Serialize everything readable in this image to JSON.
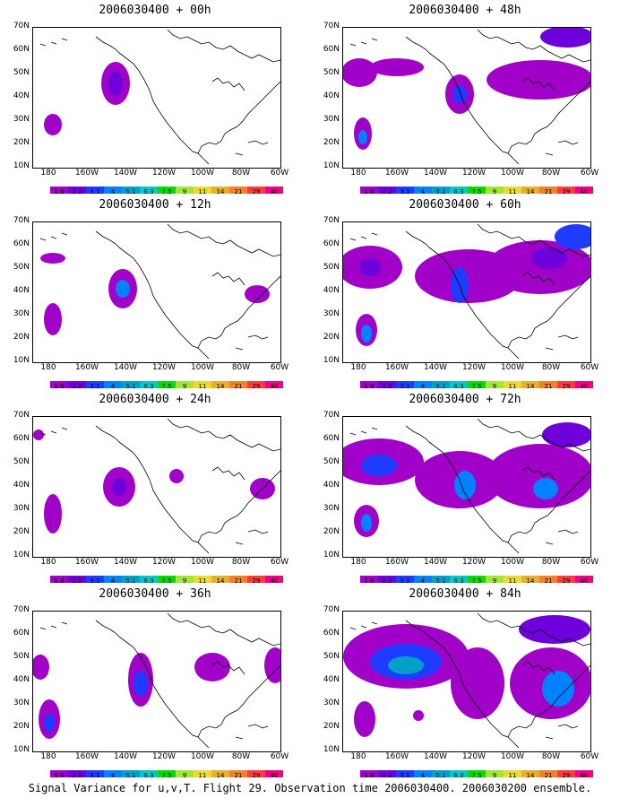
{
  "panels": [
    {
      "title": "2006030400 + 00h"
    },
    {
      "title": "2006030400 + 48h"
    },
    {
      "title": "2006030400 + 12h"
    },
    {
      "title": "2006030400 + 60h"
    },
    {
      "title": "2006030400 + 24h"
    },
    {
      "title": "2006030400 + 72h"
    },
    {
      "title": "2006030400 + 36h"
    },
    {
      "title": "2006030400 + 84h"
    }
  ],
  "y_ticks": [
    "70N",
    "60N",
    "50N",
    "40N",
    "30N",
    "20N",
    "10N"
  ],
  "x_ticks": [
    "180",
    "160W",
    "140W",
    "120W",
    "100W",
    "80W",
    "60W"
  ],
  "colorbar": {
    "labels": [
      "1.6",
      "2.2",
      "3.1",
      "4",
      "5.1",
      "6.3",
      "7.5",
      "9",
      "11",
      "14",
      "21",
      "29",
      "40"
    ],
    "colors": [
      "#a000c8",
      "#6e00dc",
      "#1e3cff",
      "#0082ff",
      "#00a0c8",
      "#00c8c8",
      "#00dc00",
      "#a0e632",
      "#e6dc32",
      "#e6af2d",
      "#f08228",
      "#fa3c3c",
      "#f00082"
    ]
  },
  "footer": "Signal Variance for u,v,T. Flight 29. Observation time 2006030400. 2006030200 ensemble."
}
